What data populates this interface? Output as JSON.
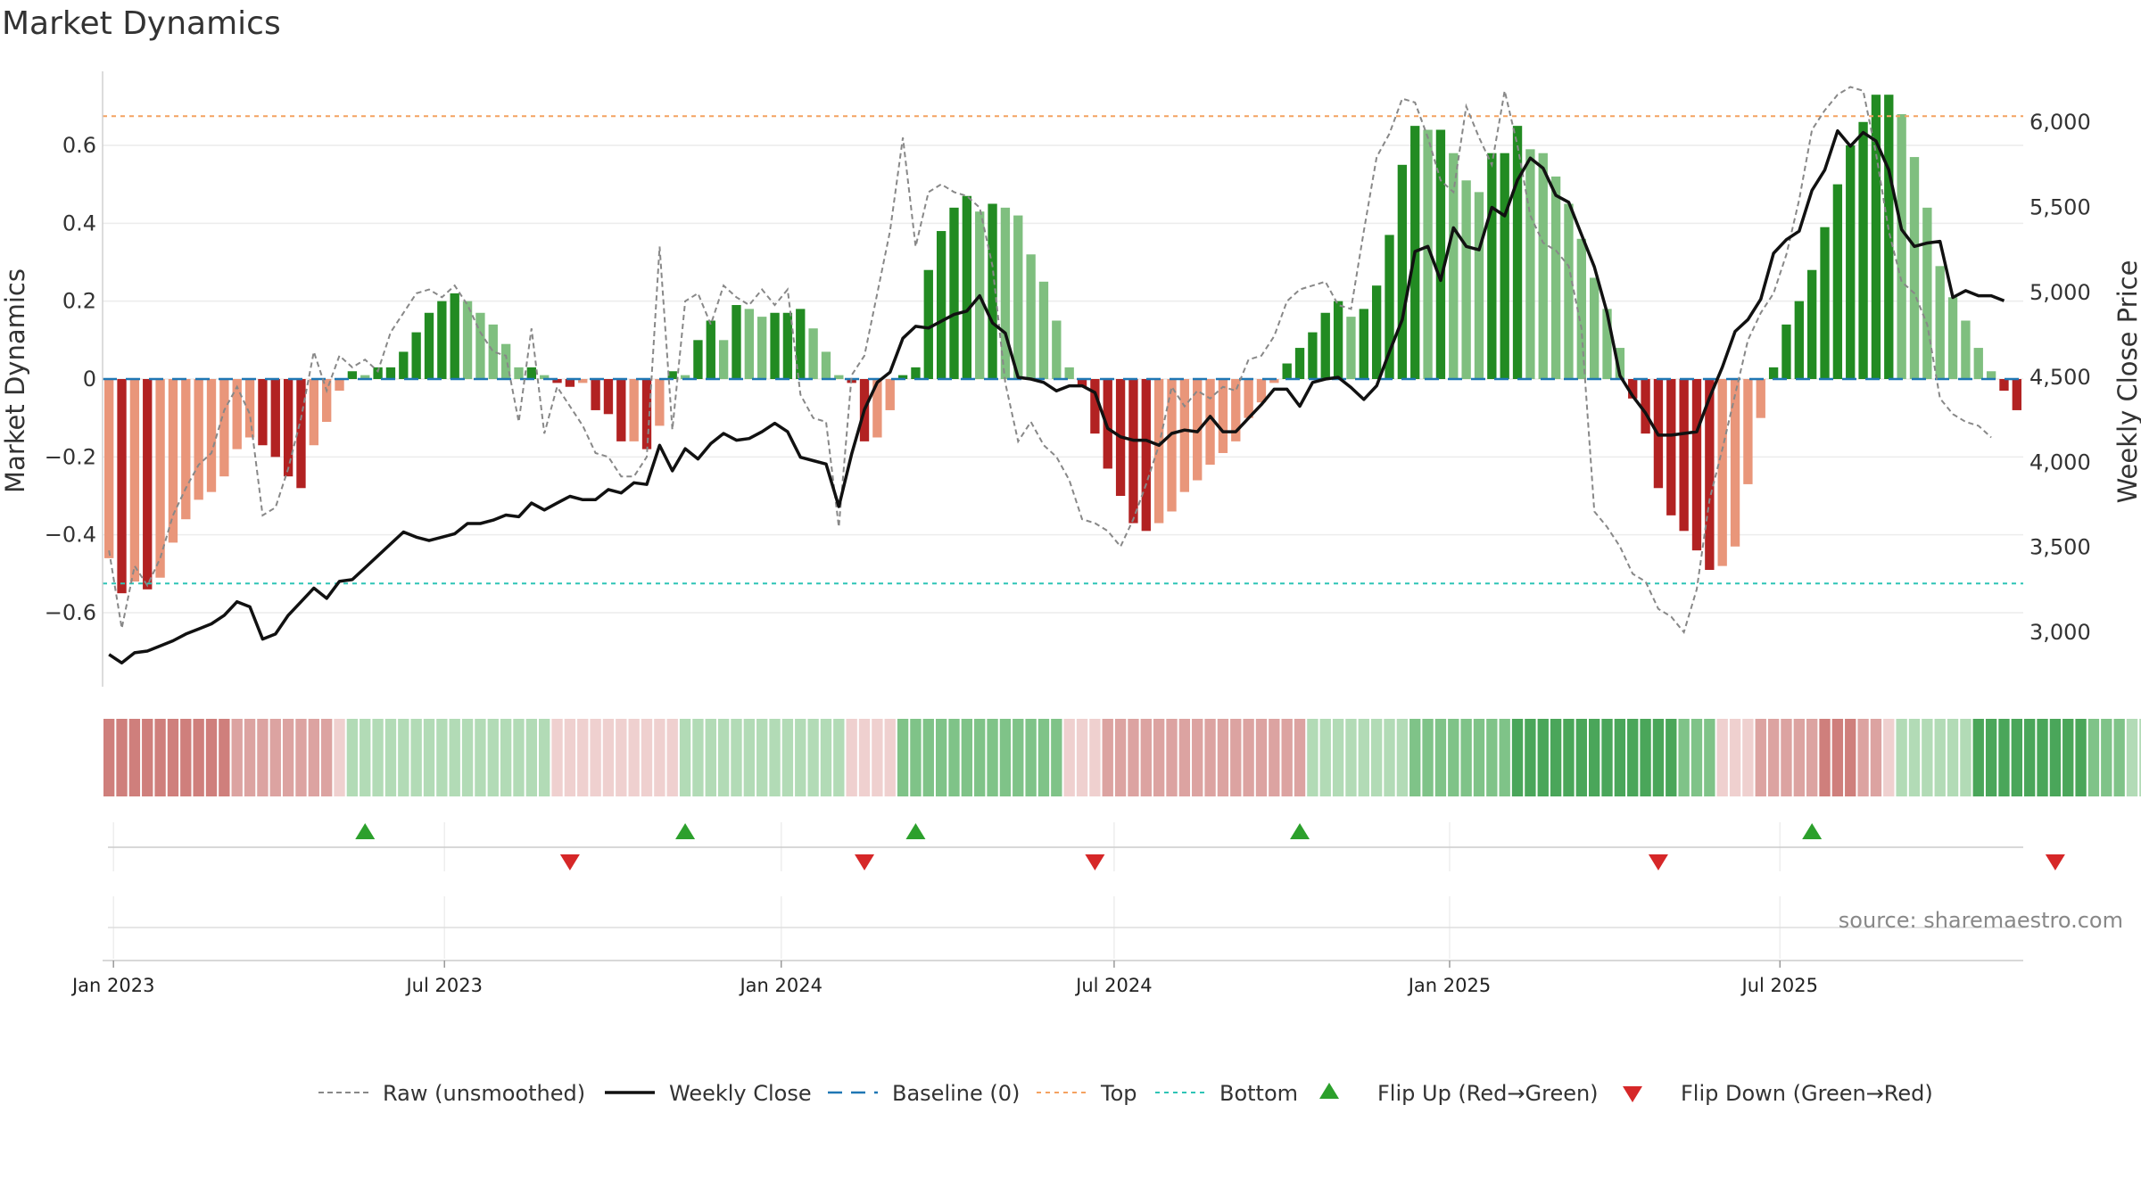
{
  "chart_data": {
    "type": "bar+line",
    "title": "Market Dynamics",
    "y_left_label": "Market Dynamics",
    "y_right_label": "Weekly Close Price",
    "y_left_ticks": [
      "−0.6",
      "−0.4",
      "−0.2",
      "0",
      "0.2",
      "0.4",
      "0.6"
    ],
    "y_left_tick_values": [
      -0.6,
      -0.4,
      -0.2,
      0,
      0.2,
      0.4,
      0.6
    ],
    "y_left_range": [
      -0.79,
      0.79
    ],
    "y_right_ticks": [
      "3,000",
      "3,500",
      "4,000",
      "4,500",
      "5,000",
      "5,500",
      "6,000"
    ],
    "y_right_tick_values": [
      3000,
      3500,
      4000,
      4500,
      5000,
      5500,
      6000
    ],
    "y_right_range": [
      2680,
      6300
    ],
    "x_ticks": [
      "Jan 2023",
      "Jul 2023",
      "Jan 2024",
      "Jul 2024",
      "Jan 2025",
      "Jul 2025"
    ],
    "x_tick_positions_week": [
      0.85,
      26.7,
      53,
      79,
      105.2,
      131
    ],
    "top_level": 0.675,
    "bottom_level": -0.525,
    "baseline": 0,
    "dynamics": [
      -0.46,
      -0.55,
      -0.52,
      -0.54,
      -0.51,
      -0.42,
      -0.36,
      -0.31,
      -0.29,
      -0.25,
      -0.18,
      -0.15,
      -0.17,
      -0.2,
      -0.25,
      -0.28,
      -0.17,
      -0.11,
      -0.03,
      0.02,
      0.01,
      0.03,
      0.03,
      0.07,
      0.12,
      0.17,
      0.2,
      0.22,
      0.2,
      0.17,
      0.14,
      0.09,
      0.03,
      0.03,
      0.01,
      -0.01,
      -0.02,
      -0.01,
      -0.08,
      -0.09,
      -0.16,
      -0.16,
      -0.18,
      -0.12,
      0.02,
      0.01,
      0.1,
      0.15,
      0.1,
      0.19,
      0.18,
      0.16,
      0.17,
      0.17,
      0.18,
      0.13,
      0.07,
      0.01,
      -0.01,
      -0.16,
      -0.15,
      -0.08,
      0.01,
      0.03,
      0.28,
      0.38,
      0.44,
      0.47,
      0.43,
      0.45,
      0.44,
      0.42,
      0.32,
      0.25,
      0.15,
      0.03,
      -0.02,
      -0.14,
      -0.23,
      -0.3,
      -0.37,
      -0.39,
      -0.37,
      -0.34,
      -0.29,
      -0.26,
      -0.22,
      -0.19,
      -0.16,
      -0.1,
      -0.06,
      -0.01,
      0.04,
      0.08,
      0.12,
      0.17,
      0.2,
      0.16,
      0.18,
      0.24,
      0.37,
      0.55,
      0.65,
      0.64,
      0.64,
      0.58,
      0.51,
      0.48,
      0.58,
      0.58,
      0.65,
      0.59,
      0.58,
      0.52,
      0.45,
      0.36,
      0.26,
      0.18,
      0.08,
      -0.05,
      -0.14,
      -0.28,
      -0.35,
      -0.39,
      -0.44,
      -0.49,
      -0.48,
      -0.43,
      -0.27,
      -0.1,
      0.03,
      0.14,
      0.2,
      0.28,
      0.39,
      0.5,
      0.6,
      0.66,
      0.73,
      0.73,
      0.68,
      0.57,
      0.44,
      0.29,
      0.21,
      0.15,
      0.08,
      0.02,
      -0.03,
      -0.08
    ],
    "raw": [
      -0.44,
      -0.64,
      -0.48,
      -0.53,
      -0.46,
      -0.35,
      -0.28,
      -0.22,
      -0.19,
      -0.08,
      -0.02,
      -0.09,
      -0.35,
      -0.33,
      -0.23,
      -0.1,
      0.07,
      -0.03,
      0.06,
      0.03,
      0.05,
      0.02,
      0.12,
      0.17,
      0.22,
      0.23,
      0.21,
      0.24,
      0.19,
      0.12,
      0.07,
      0.06,
      -0.11,
      0.13,
      -0.14,
      -0.02,
      -0.07,
      -0.12,
      -0.19,
      -0.2,
      -0.25,
      -0.25,
      -0.2,
      0.34,
      -0.13,
      0.2,
      0.22,
      0.14,
      0.24,
      0.21,
      0.19,
      0.23,
      0.19,
      0.23,
      -0.04,
      -0.1,
      -0.11,
      -0.38,
      0.01,
      0.06,
      0.22,
      0.38,
      0.62,
      0.34,
      0.48,
      0.5,
      0.48,
      0.47,
      0.44,
      0.29,
      -0.01,
      -0.16,
      -0.11,
      -0.17,
      -0.2,
      -0.26,
      -0.36,
      -0.37,
      -0.39,
      -0.43,
      -0.36,
      -0.27,
      -0.17,
      -0.02,
      -0.07,
      -0.03,
      -0.05,
      -0.02,
      -0.03,
      0.05,
      0.06,
      0.11,
      0.2,
      0.23,
      0.24,
      0.25,
      0.19,
      0.18,
      0.38,
      0.57,
      0.63,
      0.72,
      0.71,
      0.62,
      0.51,
      0.48,
      0.7,
      0.62,
      0.55,
      0.74,
      0.6,
      0.42,
      0.35,
      0.33,
      0.29,
      0.13,
      -0.34,
      -0.38,
      -0.43,
      -0.5,
      -0.52,
      -0.59,
      -0.61,
      -0.65,
      -0.54,
      -0.31,
      -0.18,
      -0.04,
      0.1,
      0.17,
      0.22,
      0.32,
      0.46,
      0.64,
      0.69,
      0.73,
      0.75,
      0.74,
      0.58,
      0.38,
      0.25,
      0.22,
      0.14,
      -0.05,
      -0.09,
      -0.11,
      -0.12,
      -0.15
    ],
    "close": [
      2870,
      2820,
      2880,
      2890,
      2920,
      2950,
      2990,
      3020,
      3050,
      3100,
      3180,
      3150,
      2960,
      2990,
      3100,
      3180,
      3260,
      3200,
      3300,
      3310,
      3380,
      3450,
      3520,
      3590,
      3560,
      3540,
      3560,
      3580,
      3640,
      3640,
      3660,
      3690,
      3680,
      3760,
      3720,
      3760,
      3800,
      3780,
      3780,
      3840,
      3820,
      3880,
      3870,
      4100,
      3950,
      4080,
      4020,
      4110,
      4170,
      4130,
      4140,
      4180,
      4230,
      4180,
      4030,
      4010,
      3990,
      3740,
      4050,
      4310,
      4470,
      4530,
      4730,
      4800,
      4790,
      4830,
      4870,
      4890,
      4980,
      4820,
      4760,
      4500,
      4490,
      4470,
      4420,
      4450,
      4450,
      4410,
      4200,
      4150,
      4130,
      4130,
      4100,
      4170,
      4190,
      4180,
      4270,
      4180,
      4180,
      4260,
      4340,
      4430,
      4430,
      4330,
      4470,
      4490,
      4500,
      4440,
      4370,
      4450,
      4650,
      4840,
      5240,
      5270,
      5070,
      5380,
      5270,
      5250,
      5500,
      5450,
      5660,
      5790,
      5730,
      5570,
      5530,
      5340,
      5150,
      4880,
      4510,
      4390,
      4290,
      4160,
      4160,
      4170,
      4180,
      4380,
      4560,
      4770,
      4840,
      4960,
      5230,
      5310,
      5360,
      5600,
      5720,
      5950,
      5860,
      5940,
      5890,
      5720,
      5370,
      5270,
      5290,
      5300,
      4970,
      5010,
      4980,
      4980,
      4950
    ],
    "regime_strips": [
      -3,
      -3,
      -3,
      -3,
      -3,
      -3,
      -3,
      -3,
      -3,
      -3,
      -2,
      -2,
      -2,
      -2,
      -2,
      -2,
      -2,
      -2,
      -1,
      1,
      1,
      1,
      1,
      1,
      1,
      1,
      1,
      1,
      1,
      1,
      1,
      1,
      1,
      1,
      1,
      -1,
      -1,
      -1,
      -1,
      -1,
      -1,
      -1,
      -1,
      -1,
      -1,
      1,
      1,
      1,
      1,
      1,
      1,
      1,
      1,
      1,
      1,
      1,
      1,
      1,
      -1,
      -1,
      -1,
      -1,
      2,
      2,
      2,
      2,
      2,
      2,
      2,
      2,
      2,
      2,
      2,
      2,
      2,
      -1,
      -1,
      -1,
      -2,
      -2,
      -2,
      -2,
      -2,
      -2,
      -2,
      -2,
      -2,
      -2,
      -2,
      -2,
      -2,
      -2,
      -2,
      -2,
      1,
      1,
      1,
      1,
      1,
      1,
      1,
      1,
      2,
      2,
      2,
      2,
      2,
      2,
      2,
      2,
      3,
      3,
      3,
      3,
      3,
      3,
      3,
      3,
      3,
      3,
      3,
      3,
      3,
      2,
      2,
      2,
      -1,
      -1,
      -1,
      -2,
      -2,
      -2,
      -2,
      -2,
      -3,
      -3,
      -3,
      -2,
      -2,
      -1,
      1,
      1,
      1,
      1,
      1,
      1,
      3,
      3,
      3,
      3,
      3,
      3,
      3,
      3,
      3,
      2,
      2,
      2,
      1,
      1,
      1,
      -1,
      -1
    ],
    "flip_up_weeks": [
      20,
      45,
      63,
      93,
      133
    ],
    "flip_down_weeks": [
      36,
      59,
      77,
      121,
      152
    ],
    "colors": {
      "green_strong": "#228b22",
      "green_light": "#7fbf7f",
      "red_strong": "#b22222",
      "red_light": "#e9967a",
      "close_line": "#111111",
      "raw_line": "#888888",
      "baseline": "#1f77b4",
      "top": "#f4a261",
      "bottom": "#2ec4b6",
      "flip_up": "#2ca02c",
      "flip_down": "#d62728"
    },
    "legend": [
      "Raw (unsmoothed)",
      "Weekly Close",
      "Baseline (0)",
      "Top",
      "Bottom",
      "Flip Up (Red→Green)",
      "Flip Down (Green→Red)"
    ],
    "legend_placement": "bottom-center",
    "source": "source: sharemaestro.com"
  }
}
